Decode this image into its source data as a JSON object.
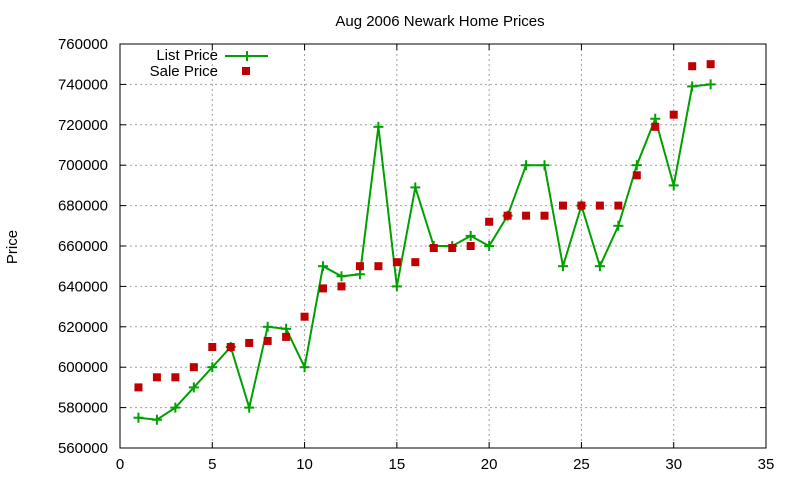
{
  "chart_data": {
    "type": "line",
    "title": "Aug 2006 Newark Home Prices",
    "xlabel": "",
    "ylabel": "Price",
    "xlim": [
      0,
      35
    ],
    "ylim": [
      560000,
      760000
    ],
    "xticks": [
      0,
      5,
      10,
      15,
      20,
      25,
      30,
      35
    ],
    "yticks": [
      560000,
      580000,
      600000,
      620000,
      640000,
      660000,
      680000,
      700000,
      720000,
      740000,
      760000
    ],
    "grid": true,
    "legend_position": "top-left",
    "series": [
      {
        "name": "List Price",
        "style": "line-with-plus-markers",
        "color": "#00a000",
        "x": [
          1,
          2,
          3,
          4,
          5,
          6,
          7,
          8,
          9,
          10,
          11,
          12,
          13,
          14,
          15,
          16,
          17,
          18,
          19,
          20,
          21,
          22,
          23,
          24,
          25,
          26,
          27,
          28,
          29,
          30,
          31,
          32
        ],
        "y": [
          575000,
          574000,
          580000,
          590000,
          600000,
          610000,
          580000,
          620000,
          619000,
          600000,
          650000,
          645000,
          646000,
          719000,
          640000,
          689000,
          660000,
          660000,
          665000,
          660000,
          675000,
          700000,
          700000,
          650000,
          680000,
          650000,
          670000,
          700000,
          723000,
          690000,
          739000,
          740000
        ]
      },
      {
        "name": "Sale Price",
        "style": "square-points",
        "color": "#c00000",
        "x": [
          1,
          2,
          3,
          4,
          5,
          6,
          7,
          8,
          9,
          10,
          11,
          12,
          13,
          14,
          15,
          16,
          17,
          18,
          19,
          20,
          21,
          22,
          23,
          24,
          25,
          26,
          27,
          28,
          29,
          30,
          31,
          32
        ],
        "y": [
          590000,
          595000,
          595000,
          600000,
          610000,
          610000,
          612000,
          613000,
          615000,
          625000,
          639000,
          640000,
          650000,
          650000,
          652000,
          652000,
          659000,
          659000,
          660000,
          672000,
          675000,
          675000,
          675000,
          680000,
          680000,
          680000,
          680000,
          695000,
          719000,
          725000,
          749000,
          750000
        ]
      }
    ]
  }
}
